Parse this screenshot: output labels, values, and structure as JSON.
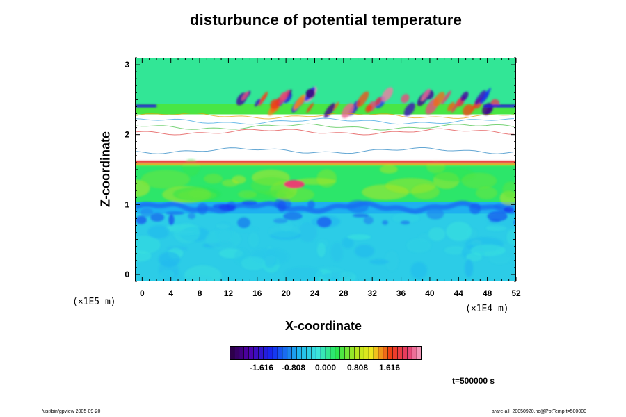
{
  "chart_data": {
    "type": "heatmap",
    "title": "disturbunce of potential temperature",
    "xlabel": "X-coordinate",
    "ylabel": "Z-coordinate",
    "x_scale_label": "(×1E4 m)",
    "y_scale_label": "(×1E5 m)",
    "xlim": [
      -1,
      52
    ],
    "ylim": [
      -0.1,
      3.1
    ],
    "x_ticks": [
      "0",
      "4",
      "8",
      "12",
      "16",
      "20",
      "24",
      "28",
      "32",
      "36",
      "40",
      "44",
      "48",
      "52"
    ],
    "x_tick_values": [
      0,
      4,
      8,
      12,
      16,
      20,
      24,
      28,
      32,
      36,
      40,
      44,
      48,
      52
    ],
    "y_ticks": [
      "0",
      "1",
      "2",
      "3"
    ],
    "y_tick_values": [
      0,
      1,
      2,
      3
    ],
    "colorbar": {
      "ticks": [
        "-1.616",
        "-0.808",
        "0.000",
        "0.808",
        "1.616"
      ],
      "tick_values": [
        -1.616,
        -0.808,
        0.0,
        0.808,
        1.616
      ],
      "range": [
        -2.424,
        2.424
      ],
      "colormap": "rainbow (purple-blue-cyan-green-yellow-red-pink)"
    },
    "field_regions": [
      {
        "z": [
          2.45,
          3.1
        ],
        "value": 0.05,
        "description": "upper layer near zero (green)"
      },
      {
        "z": [
          2.3,
          2.45
        ],
        "value": 0.4,
        "description": "wavy disturbances with red/blue streaks"
      },
      {
        "z": [
          1.62,
          2.3
        ],
        "value": null,
        "description": "undefined / out of range (white) with thin contour streaks"
      },
      {
        "z": [
          1.58,
          1.64
        ],
        "value": 1.6,
        "description": "strong positive band (red)"
      },
      {
        "z": [
          1.05,
          1.58
        ],
        "value": 0.2,
        "description": "near zero to slightly positive (green/yellow)"
      },
      {
        "z": [
          0.88,
          1.05
        ],
        "value": -0.7,
        "description": "negative wavy layer (blue)"
      },
      {
        "z": [
          -0.1,
          0.88
        ],
        "value": -0.45,
        "description": "lower layer slightly negative (cyan) with eddies"
      }
    ]
  },
  "annotations": {
    "time": "t=500000 s",
    "footer_left": "/usr/bin/gpview 2005-09-20",
    "footer_right": "arare-all_20050920.nc@PotTemp,t=500000"
  },
  "colors": {
    "green": "#19e63c",
    "cyan": "#46e6e6",
    "blue": "#3a7ef0",
    "red": "#f0321e",
    "yellow": "#e6e619",
    "white": "#ffffff"
  }
}
